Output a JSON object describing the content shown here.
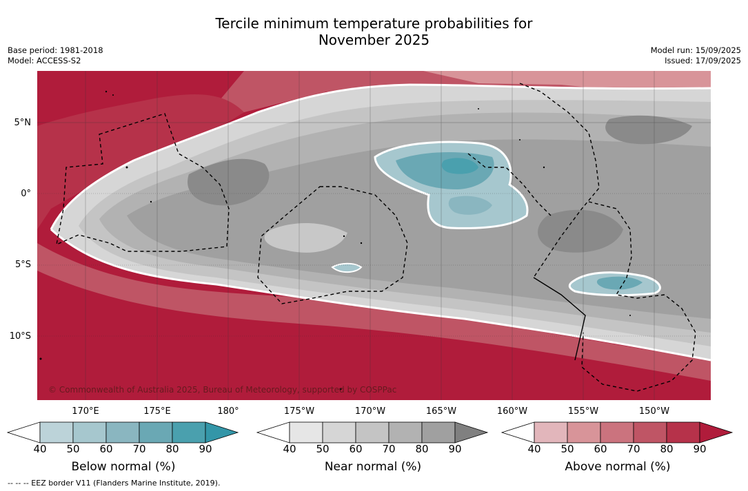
{
  "title_line1": "Tercile minimum temperature probabilities for",
  "title_line2": "November 2025",
  "meta_left": {
    "base_period": "Base period: 1981-2018",
    "model": "Model: ACCESS-S2"
  },
  "meta_right": {
    "model_run": "Model run: 15/09/2025",
    "issued": "Issued: 17/09/2025"
  },
  "map": {
    "lat_labels": [
      "5°N",
      "0°",
      "5°S",
      "10°S"
    ],
    "lon_labels": [
      "170°E",
      "175°E",
      "180°",
      "175°W",
      "170°W",
      "165°W",
      "160°W",
      "155°W",
      "150°W"
    ],
    "copyright": "© Commonwealth of Australia 2025, Bureau of Meteorology, supported by COSPPac"
  },
  "colorbars": [
    {
      "label": "Below normal (%)",
      "ticks": [
        "40",
        "50",
        "60",
        "70",
        "80",
        "90"
      ],
      "colors": [
        "#ffffff",
        "#bcd3d9",
        "#a6c7ce",
        "#8ab6c0",
        "#6aa8b4",
        "#4aa0ae",
        "#3396a8"
      ]
    },
    {
      "label": "Near normal (%)",
      "ticks": [
        "40",
        "50",
        "60",
        "70",
        "80",
        "90"
      ],
      "colors": [
        "#ffffff",
        "#e6e6e6",
        "#d6d6d6",
        "#c4c4c4",
        "#b2b2b2",
        "#a0a0a0",
        "#808080"
      ]
    },
    {
      "label": "Above normal (%)",
      "ticks": [
        "40",
        "50",
        "60",
        "70",
        "80",
        "90"
      ],
      "colors": [
        "#ffffff",
        "#e2b6bb",
        "#d89499",
        "#cb737e",
        "#bf5565",
        "#b6324a",
        "#b01c3b"
      ]
    }
  ],
  "eez_note": "--  --  -- EEZ border V11 (Flanders Marine Institute, 2019)."
}
